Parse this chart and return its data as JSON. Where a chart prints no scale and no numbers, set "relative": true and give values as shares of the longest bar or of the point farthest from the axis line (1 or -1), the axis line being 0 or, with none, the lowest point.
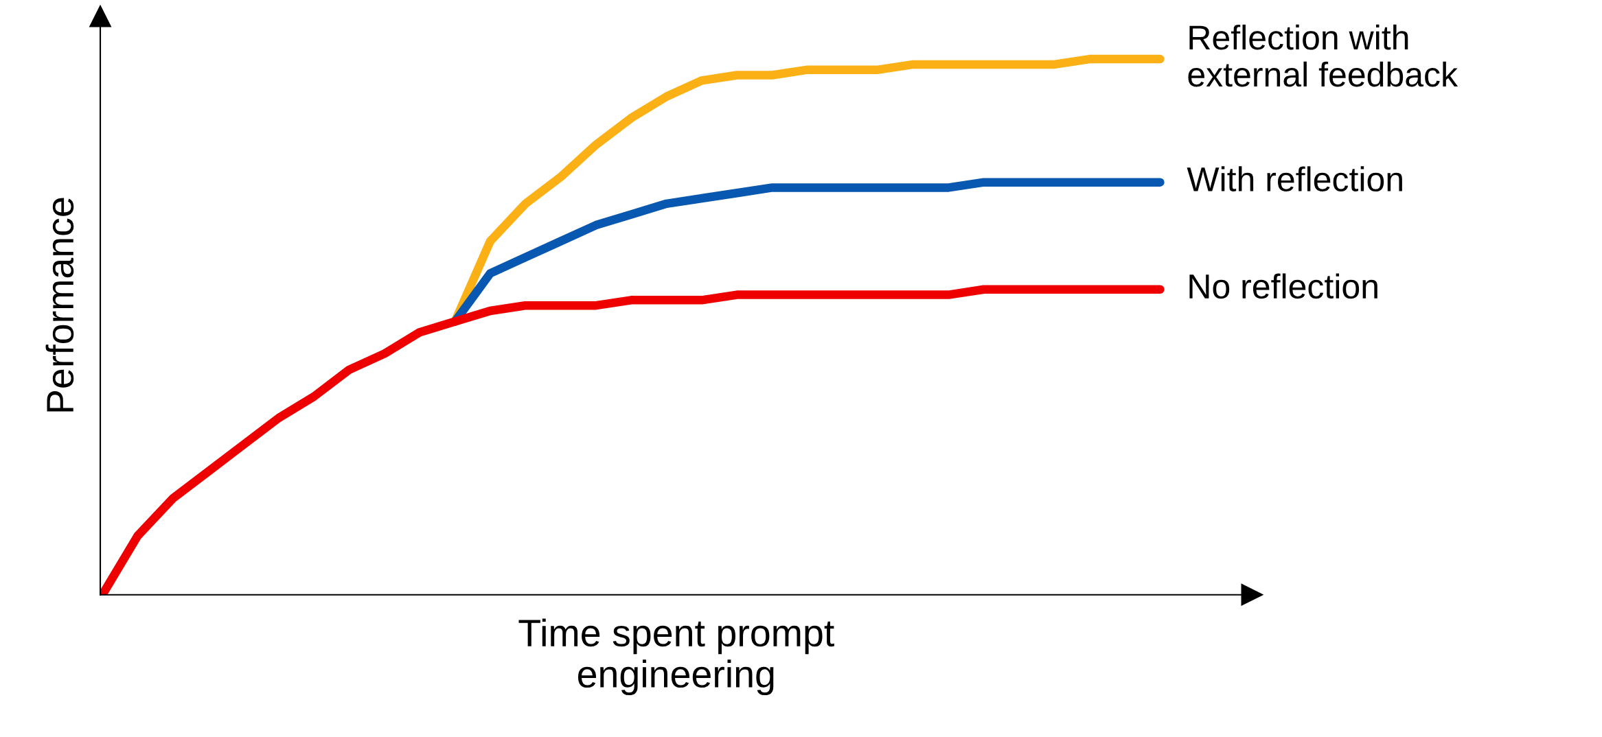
{
  "chart_data": {
    "type": "line",
    "relative": true,
    "xlabel": "Time spent prompt\nengineering",
    "ylabel": "Performance",
    "tick_labels": false,
    "legend": false,
    "categories": [
      null,
      null,
      null,
      null,
      null,
      null,
      null,
      null,
      null,
      null,
      null,
      null,
      null,
      null,
      null,
      null,
      null,
      null,
      null,
      null,
      null,
      null,
      null,
      null,
      null,
      null,
      null,
      null,
      null,
      null,
      null
    ],
    "series": [
      {
        "name": "Reflection with\nexternal feedback",
        "color": "#fbb116",
        "values": [
          null,
          null,
          null,
          null,
          null,
          null,
          null,
          null,
          null,
          null,
          0.51,
          0.66,
          0.73,
          0.78,
          0.84,
          0.89,
          0.93,
          0.96,
          0.97,
          0.97,
          0.98,
          0.98,
          0.98,
          0.99,
          0.99,
          0.99,
          0.99,
          0.99,
          1.0,
          1.0,
          1.0
        ]
      },
      {
        "name": "With reflection",
        "color": "#0857b0",
        "values": [
          null,
          null,
          null,
          null,
          null,
          null,
          null,
          null,
          null,
          null,
          0.51,
          0.6,
          0.63,
          0.66,
          0.69,
          0.71,
          0.73,
          0.74,
          0.75,
          0.76,
          0.76,
          0.76,
          0.76,
          0.76,
          0.76,
          0.77,
          0.77,
          0.77,
          0.77,
          0.77,
          0.77
        ]
      },
      {
        "name": "No reflection",
        "color": "#ee0000",
        "values": [
          0,
          0.11,
          0.18,
          0.23,
          0.28,
          0.33,
          0.37,
          0.42,
          0.45,
          0.49,
          0.51,
          0.53,
          0.54,
          0.54,
          0.54,
          0.55,
          0.55,
          0.55,
          0.56,
          0.56,
          0.56,
          0.56,
          0.56,
          0.56,
          0.56,
          0.57,
          0.57,
          0.57,
          0.57,
          0.57,
          0.57
        ]
      }
    ]
  }
}
